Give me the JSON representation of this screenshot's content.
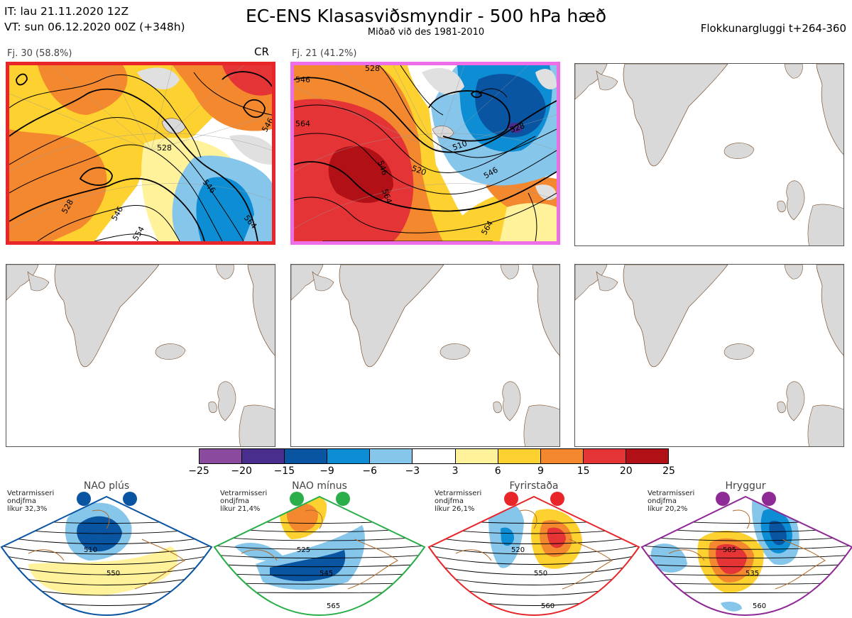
{
  "header": {
    "it_line": "IT: lau 21.11.2020 12Z",
    "vt_line": "VT: sun 06.12.2020 00Z  (+348h)",
    "title": "EC-ENS Klasasviðsmyndir - 500 hPa hæð",
    "subtitle": "Miðað við des 1981-2010",
    "window": "Flokkunargluggi t+264-360"
  },
  "panels": [
    {
      "label": "Fj. 30 (58.8%)",
      "tag": "CR",
      "frame_color": "#e8262a",
      "contour_labels": [
        "528",
        "528",
        "546",
        "546",
        "554",
        "564",
        "546"
      ]
    },
    {
      "label": "Fj. 21 (41.2%)",
      "tag": "",
      "frame_color": "#ee6ee8",
      "contour_labels": [
        "546",
        "564",
        "546",
        "564",
        "528",
        "546",
        "520",
        "510",
        "564",
        "528"
      ]
    },
    {
      "label": "",
      "tag": ""
    },
    {
      "label": "",
      "tag": ""
    },
    {
      "label": "",
      "tag": ""
    },
    {
      "label": "",
      "tag": ""
    }
  ],
  "colorbar": {
    "ticks": [
      "−25",
      "−20",
      "−15",
      "−9",
      "−6",
      "−3",
      "3",
      "6",
      "9",
      "15",
      "20",
      "25"
    ],
    "colors": [
      "#8a4a9e",
      "#4a2e8e",
      "#0a55a2",
      "#0d8ed4",
      "#87c6eb",
      "#ffffff",
      "#fff29a",
      "#fdd12f",
      "#f3882f",
      "#e43436",
      "#b01016"
    ]
  },
  "classes": [
    {
      "title": "NAO plús",
      "text": [
        "Vetrarmisseri",
        "ondjfma",
        "líkur 32,3%"
      ],
      "color": "#0a55a2",
      "contour_labels": [
        "510",
        "550"
      ]
    },
    {
      "title": "NAO mínus",
      "text": [
        "Vetrarmisseri",
        "ondjfma",
        "líkur 21,4%"
      ],
      "color": "#2aae4a",
      "contour_labels": [
        "525",
        "545",
        "565"
      ]
    },
    {
      "title": "Fyrirstaða",
      "text": [
        "Vetrarmisseri",
        "ondjfma",
        "líkur 26,1%"
      ],
      "color": "#e8262a",
      "contour_labels": [
        "520",
        "550",
        "560"
      ]
    },
    {
      "title": "Hryggur",
      "text": [
        "Vetrarmisseri",
        "ondjfma",
        "líkur 20,2%"
      ],
      "color": "#8e2a96",
      "contour_labels": [
        "505",
        "535",
        "560"
      ]
    }
  ]
}
